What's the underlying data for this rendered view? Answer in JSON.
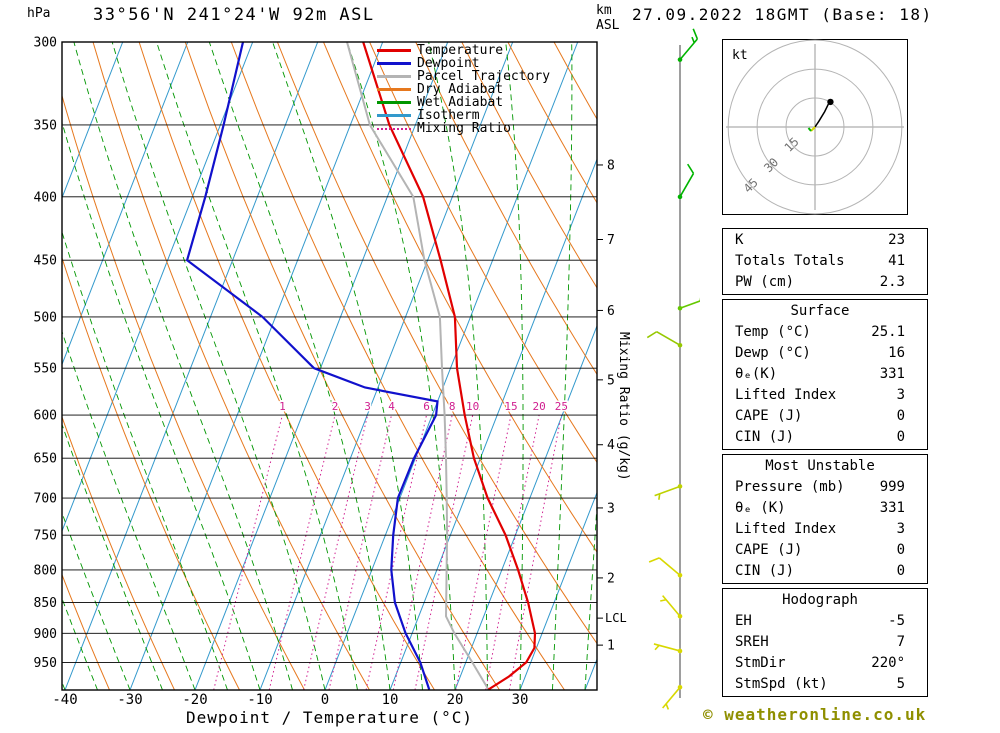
{
  "header": {
    "station": "33°56'N 241°24'W 92m ASL",
    "datetime": "27.09.2022 18GMT (Base: 18)",
    "pressure_unit": "hPa",
    "height_unit_line1": "km",
    "height_unit_line2": "ASL",
    "copyright": "© weatheronline.co.uk"
  },
  "legend": [
    {
      "label": "Temperature",
      "color": "#e10000",
      "style": "solid"
    },
    {
      "label": "Dewpoint",
      "color": "#1111cc",
      "style": "solid"
    },
    {
      "label": "Parcel Trajectory",
      "color": "#b4b4b4",
      "style": "solid"
    },
    {
      "label": "Dry Adiabat",
      "color": "#e6781e",
      "style": "solid"
    },
    {
      "label": "Wet Adiabat",
      "color": "#009600",
      "style": "solid"
    },
    {
      "label": "Isotherm",
      "color": "#3399cc",
      "style": "solid"
    },
    {
      "label": "Mixing Ratio",
      "color": "#d02090",
      "style": "dotted"
    }
  ],
  "chart_data": {
    "type": "skewt_log_p",
    "xlabel": "Dewpoint / Temperature (°C)",
    "x_ticks": [
      -40,
      -30,
      -20,
      -10,
      0,
      10,
      20,
      30
    ],
    "pressure_ticks": [
      300,
      350,
      400,
      450,
      500,
      550,
      600,
      650,
      700,
      750,
      800,
      850,
      900,
      950
    ],
    "pressure_range": [
      300,
      1000
    ],
    "km_ticks": [
      {
        "km": 1,
        "p": 920
      },
      {
        "km": 2,
        "p": 812
      },
      {
        "km": 3,
        "p": 713
      },
      {
        "km": 4,
        "p": 634
      },
      {
        "km": 5,
        "p": 562
      },
      {
        "km": 6,
        "p": 494
      },
      {
        "km": 7,
        "p": 433
      },
      {
        "km": 8,
        "p": 377
      }
    ],
    "lcl": {
      "label": "LCL",
      "p": 875
    },
    "mixing_ratio_label": "Mixing Ratio (g/kg)",
    "mixing_ratio_lines_gkg": [
      1,
      2,
      3,
      4,
      6,
      8,
      10,
      15,
      20,
      25
    ],
    "isotherms_c": {
      "min": -80,
      "max": 40,
      "step": 10
    },
    "dry_adiabats_k": {
      "min": 230,
      "max": 390,
      "step": 10
    },
    "wet_adiabats_c_at_1000": {
      "min": -40,
      "max": 40,
      "step": 5
    },
    "colors": {
      "temperature": "#e10000",
      "dewpoint": "#1111cc",
      "parcel": "#b4b4b4",
      "dry_adiabat": "#e6781e",
      "wet_adiabat": "#009600",
      "isotherm": "#3399cc",
      "mixing_ratio": "#d02090",
      "isobar": "#000000"
    },
    "temperature_profile": [
      [
        999,
        25.1
      ],
      [
        975,
        27.5
      ],
      [
        950,
        29.3
      ],
      [
        925,
        29.7
      ],
      [
        900,
        28.9
      ],
      [
        850,
        26.0
      ],
      [
        800,
        22.5
      ],
      [
        750,
        18.5
      ],
      [
        700,
        13.5
      ],
      [
        650,
        9.0
      ],
      [
        600,
        5.0
      ],
      [
        550,
        1.0
      ],
      [
        500,
        -2.4
      ],
      [
        450,
        -8.0
      ],
      [
        400,
        -14.5
      ],
      [
        350,
        -24.0
      ],
      [
        300,
        -33.0
      ]
    ],
    "dewpoint_profile": [
      [
        999,
        16.0
      ],
      [
        950,
        13.0
      ],
      [
        900,
        9.0
      ],
      [
        850,
        5.5
      ],
      [
        800,
        3.0
      ],
      [
        750,
        1.2
      ],
      [
        700,
        -0.3
      ],
      [
        650,
        -0.2
      ],
      [
        600,
        0.6
      ],
      [
        585,
        0.0
      ],
      [
        570,
        -12.0
      ],
      [
        550,
        -21.0
      ],
      [
        500,
        -32.0
      ],
      [
        450,
        -47.0
      ],
      [
        400,
        -48.0
      ],
      [
        350,
        -49.5
      ],
      [
        300,
        -51.5
      ]
    ],
    "parcel_profile": [
      [
        999,
        25.1
      ],
      [
        950,
        21.0
      ],
      [
        900,
        16.5
      ],
      [
        872,
        14.2
      ],
      [
        850,
        13.4
      ],
      [
        800,
        11.5
      ],
      [
        750,
        9.5
      ],
      [
        700,
        7.2
      ],
      [
        650,
        4.7
      ],
      [
        600,
        1.9
      ],
      [
        550,
        -1.3
      ],
      [
        500,
        -4.7
      ],
      [
        450,
        -10.5
      ],
      [
        400,
        -16.0
      ],
      [
        350,
        -27.0
      ],
      [
        300,
        -35.5
      ]
    ],
    "wind_barbs": [
      {
        "p": 310,
        "dir_deg": 40,
        "speed_kt": 15,
        "color": "#00b400"
      },
      {
        "p": 400,
        "dir_deg": 30,
        "speed_kt": 10,
        "color": "#00b400"
      },
      {
        "p": 492,
        "dir_deg": 70,
        "speed_kt": 5,
        "color": "#64c800"
      },
      {
        "p": 527,
        "dir_deg": 300,
        "speed_kt": 10,
        "color": "#96c800"
      },
      {
        "p": 685,
        "dir_deg": 250,
        "speed_kt": 5,
        "color": "#bed200"
      },
      {
        "p": 808,
        "dir_deg": 310,
        "speed_kt": 10,
        "color": "#d8d800"
      },
      {
        "p": 872,
        "dir_deg": 320,
        "speed_kt": 5,
        "color": "#d8d800"
      },
      {
        "p": 930,
        "dir_deg": 285,
        "speed_kt": 5,
        "color": "#d8d800"
      },
      {
        "p": 995,
        "dir_deg": 220,
        "speed_kt": 5,
        "color": "#d8d800"
      }
    ]
  },
  "hodograph": {
    "unit_label": "kt",
    "rings_kt": [
      15,
      30,
      45
    ],
    "ring_labels": [
      "15",
      "30",
      "45"
    ],
    "trace_kt": [
      [
        0,
        0
      ],
      [
        2,
        3
      ],
      [
        5,
        8
      ],
      [
        7,
        12
      ]
    ],
    "marker_kt": [
      8,
      13
    ]
  },
  "tables": [
    {
      "name": "indices-table",
      "header": null,
      "rows": [
        [
          "K",
          "23"
        ],
        [
          "Totals Totals",
          "41"
        ],
        [
          "PW (cm)",
          "2.3"
        ]
      ]
    },
    {
      "name": "surface-table",
      "header": "Surface",
      "rows": [
        [
          "Temp (°C)",
          "25.1"
        ],
        [
          "Dewp (°C)",
          "16"
        ],
        [
          "θₑ(K)",
          "331"
        ],
        [
          "Lifted Index",
          "3"
        ],
        [
          "CAPE (J)",
          "0"
        ],
        [
          "CIN (J)",
          "0"
        ]
      ]
    },
    {
      "name": "most-unstable-table",
      "header": "Most Unstable",
      "rows": [
        [
          "Pressure (mb)",
          "999"
        ],
        [
          "θₑ (K)",
          "331"
        ],
        [
          "Lifted Index",
          "3"
        ],
        [
          "CAPE (J)",
          "0"
        ],
        [
          "CIN (J)",
          "0"
        ]
      ]
    },
    {
      "name": "hodograph-table",
      "header": "Hodograph",
      "rows": [
        [
          "EH",
          "-5"
        ],
        [
          "SREH",
          "7"
        ],
        [
          "StmDir",
          "220°"
        ],
        [
          "StmSpd (kt)",
          "5"
        ]
      ]
    }
  ]
}
